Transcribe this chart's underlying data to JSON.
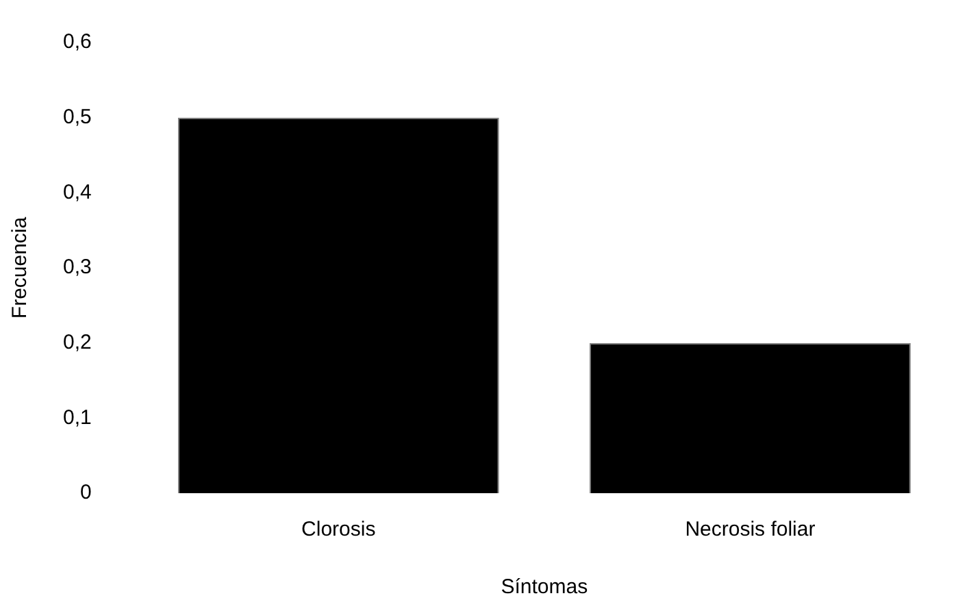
{
  "chart_data": {
    "type": "bar",
    "xlabel": "Síntomas",
    "ylabel": "Frecuencia",
    "categories": [
      "Clorosis",
      "Necrosis foliar"
    ],
    "values": [
      0.5,
      0.2
    ],
    "color": "#000000",
    "ylim": [
      0,
      0.6
    ],
    "yticks": [
      {
        "value": 0,
        "label": "0"
      },
      {
        "value": 0.1,
        "label": "0,1"
      },
      {
        "value": 0.2,
        "label": "0,2"
      },
      {
        "value": 0.3,
        "label": "0,3"
      },
      {
        "value": 0.4,
        "label": "0,4"
      },
      {
        "value": 0.5,
        "label": "0,5"
      },
      {
        "value": 0.6,
        "label": "0,6"
      }
    ],
    "grid": false,
    "legend": false
  }
}
